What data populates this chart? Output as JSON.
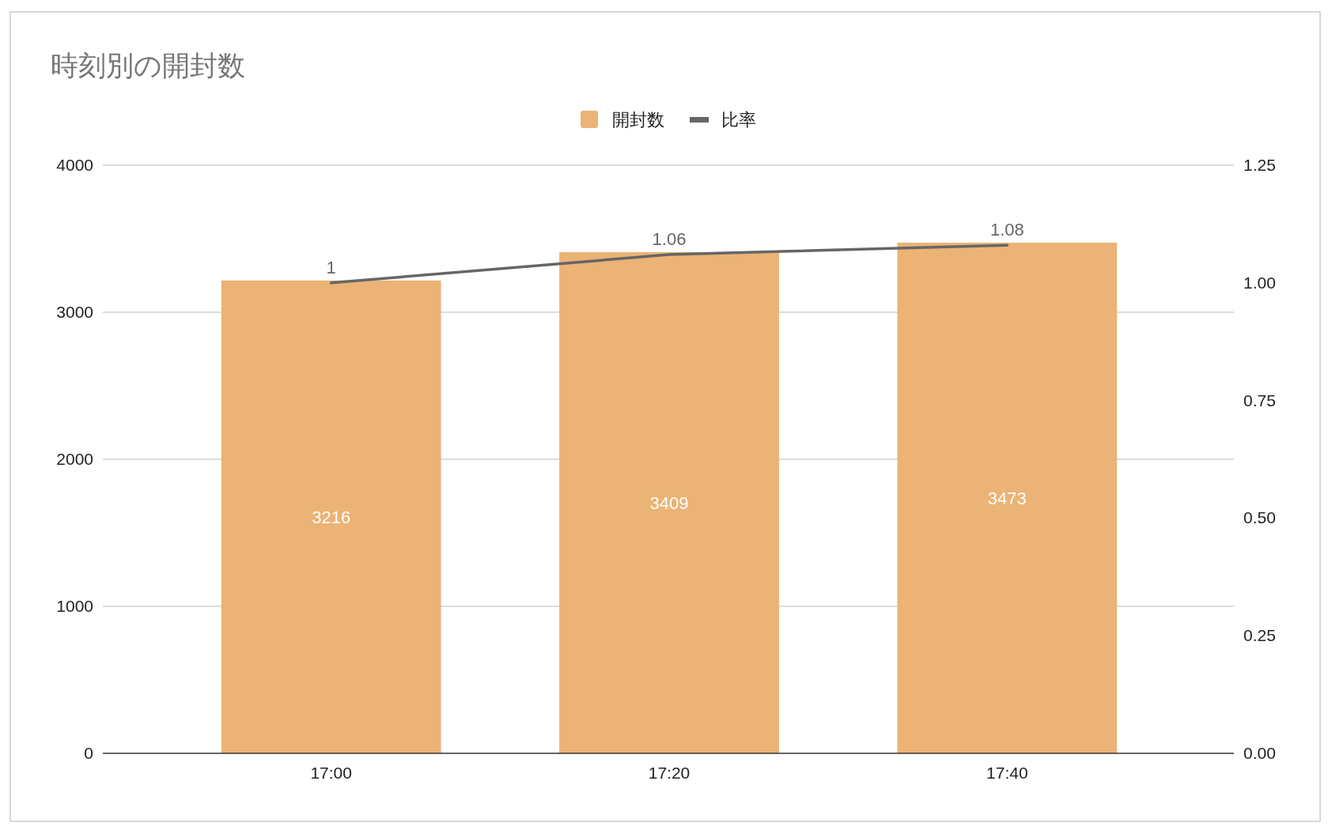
{
  "chart_data": {
    "type": "bar",
    "title": "時刻別の開封数",
    "categories": [
      "17:00",
      "17:20",
      "17:40"
    ],
    "series": [
      {
        "name": "開封数",
        "color": "#ebb375",
        "values": [
          3216,
          3409,
          3473
        ]
      },
      {
        "name": "比率",
        "type": "line",
        "axis": "y2",
        "color": "#666666",
        "values": [
          1,
          1.06,
          1.08
        ]
      }
    ],
    "ylim": [
      0,
      4000
    ],
    "yticks": [
      0,
      1000,
      2000,
      3000,
      4000
    ],
    "y2lim": [
      0,
      1.25
    ],
    "y2ticks": [
      {
        "value": 0,
        "label": "0.00"
      },
      {
        "value": 0.25,
        "label": "0.25"
      },
      {
        "value": 0.5,
        "label": "0.50"
      },
      {
        "value": 0.75,
        "label": "0.75"
      },
      {
        "value": 1,
        "label": "1.00"
      },
      {
        "value": 1.25,
        "label": "1.25"
      }
    ],
    "grid": "y",
    "legend": "top",
    "data_labels": true
  }
}
